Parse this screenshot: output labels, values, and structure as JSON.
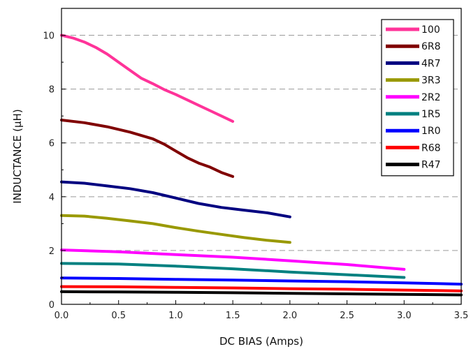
{
  "chart_data": {
    "type": "line",
    "title": "",
    "xlabel": "DC BIAS (Amps)",
    "ylabel": "INDUCTANCE (µH)",
    "xlim": [
      0.0,
      3.5
    ],
    "ylim": [
      0,
      11
    ],
    "xticks": [
      0.0,
      0.5,
      1.0,
      1.5,
      2.0,
      2.5,
      3.0,
      3.5
    ],
    "xtick_labels": [
      "0.0",
      "0.5",
      "1.0",
      "1.5",
      "2.0",
      "2.5",
      "3.0",
      "3.5"
    ],
    "yticks": [
      0,
      2,
      4,
      6,
      8,
      10
    ],
    "ytick_labels": [
      "0",
      "2",
      "4",
      "6",
      "8",
      "10"
    ],
    "grid": "horizontal dashed at major y ticks",
    "legend_position": "top-right",
    "series": [
      {
        "name": "100",
        "color": "#ff3399",
        "x": [
          0.0,
          0.1,
          0.2,
          0.3,
          0.4,
          0.5,
          0.6,
          0.7,
          0.8,
          0.9,
          1.0,
          1.1,
          1.2,
          1.3,
          1.4,
          1.5
        ],
        "y": [
          10.0,
          9.9,
          9.75,
          9.55,
          9.3,
          9.0,
          8.7,
          8.4,
          8.2,
          7.98,
          7.8,
          7.6,
          7.4,
          7.2,
          7.0,
          6.8
        ]
      },
      {
        "name": "6R8",
        "color": "#800000",
        "x": [
          0.0,
          0.2,
          0.4,
          0.6,
          0.8,
          0.9,
          1.0,
          1.1,
          1.2,
          1.3,
          1.4,
          1.5
        ],
        "y": [
          6.85,
          6.75,
          6.6,
          6.4,
          6.15,
          5.95,
          5.7,
          5.45,
          5.25,
          5.1,
          4.9,
          4.75
        ]
      },
      {
        "name": "4R7",
        "color": "#000080",
        "x": [
          0.0,
          0.2,
          0.4,
          0.6,
          0.8,
          1.0,
          1.2,
          1.4,
          1.6,
          1.8,
          2.0
        ],
        "y": [
          4.55,
          4.5,
          4.4,
          4.3,
          4.15,
          3.95,
          3.75,
          3.6,
          3.5,
          3.4,
          3.25
        ]
      },
      {
        "name": "3R3",
        "color": "#999900",
        "x": [
          0.0,
          0.2,
          0.4,
          0.6,
          0.8,
          1.0,
          1.2,
          1.4,
          1.6,
          1.8,
          2.0
        ],
        "y": [
          3.3,
          3.28,
          3.2,
          3.1,
          3.0,
          2.85,
          2.72,
          2.6,
          2.48,
          2.38,
          2.3
        ]
      },
      {
        "name": "2R2",
        "color": "#ff00ff",
        "x": [
          0.0,
          0.5,
          1.0,
          1.5,
          2.0,
          2.5,
          3.0
        ],
        "y": [
          2.02,
          1.95,
          1.85,
          1.75,
          1.62,
          1.48,
          1.3
        ]
      },
      {
        "name": "1R5",
        "color": "#008080",
        "x": [
          0.0,
          0.5,
          1.0,
          1.5,
          2.0,
          2.5,
          3.0
        ],
        "y": [
          1.52,
          1.5,
          1.42,
          1.32,
          1.2,
          1.1,
          1.0
        ]
      },
      {
        "name": "1R0",
        "color": "#0000ff",
        "x": [
          0.0,
          0.5,
          1.0,
          1.5,
          2.0,
          2.5,
          3.0,
          3.5
        ],
        "y": [
          0.98,
          0.96,
          0.93,
          0.9,
          0.87,
          0.84,
          0.8,
          0.75
        ]
      },
      {
        "name": "R68",
        "color": "#ff0000",
        "x": [
          0.0,
          0.5,
          1.0,
          1.5,
          2.0,
          2.5,
          3.0,
          3.5
        ],
        "y": [
          0.66,
          0.65,
          0.63,
          0.61,
          0.58,
          0.56,
          0.53,
          0.5
        ]
      },
      {
        "name": "R47",
        "color": "#000000",
        "x": [
          0.0,
          0.5,
          1.0,
          1.5,
          2.0,
          2.5,
          3.0,
          3.5
        ],
        "y": [
          0.47,
          0.46,
          0.45,
          0.43,
          0.41,
          0.39,
          0.37,
          0.35
        ]
      }
    ]
  }
}
